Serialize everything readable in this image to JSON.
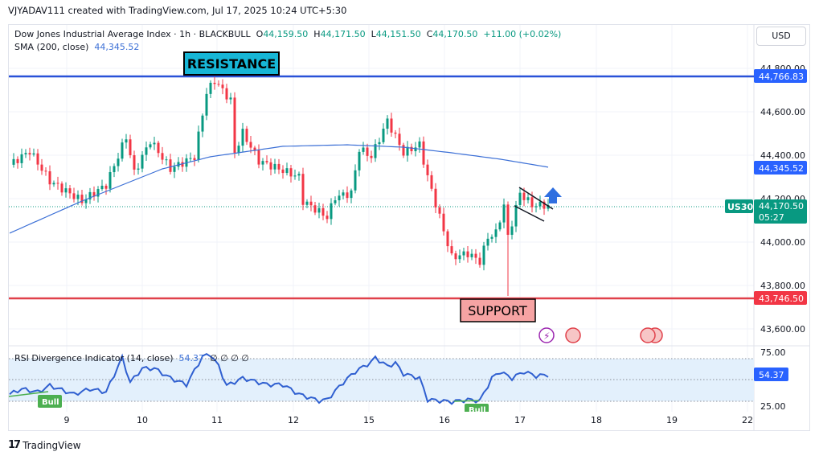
{
  "credit": "VJYADAV111 created with TradingView.com, Jul 17, 2025 10:24 UTC+5:30",
  "legend": {
    "symbol": "Dow Jones Industrial Average Index · 1h · BLACKBULL",
    "o_label": "O",
    "o": "44,159.50",
    "h_label": "H",
    "h": "44,171.50",
    "l_label": "L",
    "l": "44,151.50",
    "c_label": "C",
    "c": "44,170.50",
    "change": "+11.00 (+0.02%)",
    "sma_label": "SMA (200, close)",
    "sma_value": "44,345.52"
  },
  "currency_button": "USD",
  "annotations": {
    "resistance": "RESISTANCE",
    "support": "SUPPORT",
    "bull1": "Bull",
    "bull2": "Bull"
  },
  "price_axis": {
    "ticks": [
      "44,800.00",
      "44,600.00",
      "44,400.00",
      "44,200.00",
      "44,000.00",
      "43,800.00",
      "43,600.00"
    ],
    "resistance_tag": "44,766.83",
    "sma_tag": "44,345.52",
    "symbol_tag": "US30",
    "last_price_tag": "44,170.50",
    "countdown": "05:27",
    "support_tag": "43,746.50"
  },
  "rsi": {
    "label": "RSI Divergence Indicator (14, close)",
    "value": "54.37",
    "extras": "∅  ∅  ∅  ∅",
    "ticks": [
      "75.00",
      "25.00"
    ],
    "tag": "54.37"
  },
  "time_axis": [
    "9",
    "10",
    "11",
    "12",
    "15",
    "16",
    "17",
    "18",
    "19",
    "22"
  ],
  "footer": "TradingView",
  "colors": {
    "up": "#089981",
    "down": "#f23645",
    "sma": "#3b6fd6",
    "resistance": "#2a52d8",
    "support": "#e0404a",
    "rsi": "#2f5fd0"
  },
  "chart_data": {
    "type": "candlestick",
    "title": "Dow Jones Industrial Average Index · 1h",
    "ylim": [
      43550,
      44850
    ],
    "resistance": 44766.83,
    "support": 43746.5,
    "last": 44170.5,
    "price_path": [
      [
        0,
        44356
      ],
      [
        5,
        44419
      ],
      [
        10,
        44281
      ],
      [
        18,
        44189
      ],
      [
        24,
        44263
      ],
      [
        29,
        44485
      ],
      [
        31,
        44319
      ],
      [
        35,
        44467
      ],
      [
        40,
        44337
      ],
      [
        46,
        44393
      ],
      [
        49,
        44689
      ],
      [
        51,
        44744
      ],
      [
        55,
        44652
      ],
      [
        56,
        44411
      ],
      [
        58,
        44504
      ],
      [
        62,
        44374
      ],
      [
        67,
        44337
      ],
      [
        72,
        44300
      ],
      [
        73,
        44189
      ],
      [
        79,
        44115
      ],
      [
        81,
        44207
      ],
      [
        85,
        44226
      ],
      [
        87,
        44430
      ],
      [
        90,
        44393
      ],
      [
        94,
        44559
      ],
      [
        98,
        44411
      ],
      [
        102,
        44448
      ],
      [
        104,
        44300
      ],
      [
        107,
        44115
      ],
      [
        110,
        43930
      ],
      [
        114,
        43948
      ],
      [
        117,
        43911
      ],
      [
        119,
        44022
      ],
      [
        121,
        44041
      ],
      [
        123,
        44170
      ],
      [
        124,
        44022
      ],
      [
        127,
        44226
      ],
      [
        130,
        44170
      ],
      [
        134,
        44170
      ]
    ],
    "sma_path": [
      [
        0,
        44041
      ],
      [
        18,
        44189
      ],
      [
        38,
        44337
      ],
      [
        50,
        44393
      ],
      [
        68,
        44441
      ],
      [
        84,
        44448
      ],
      [
        98,
        44437
      ],
      [
        110,
        44411
      ],
      [
        122,
        44382
      ],
      [
        134,
        44345
      ]
    ],
    "rsi_path": [
      [
        0,
        36
      ],
      [
        3,
        41
      ],
      [
        7,
        38
      ],
      [
        10,
        44
      ],
      [
        16,
        36
      ],
      [
        20,
        41
      ],
      [
        24,
        38
      ],
      [
        28,
        70
      ],
      [
        30,
        47
      ],
      [
        33,
        60
      ],
      [
        36,
        60
      ],
      [
        40,
        51
      ],
      [
        44,
        45
      ],
      [
        48,
        71
      ],
      [
        50,
        73
      ],
      [
        52,
        62
      ],
      [
        54,
        44
      ],
      [
        58,
        51
      ],
      [
        64,
        45
      ],
      [
        68,
        45
      ],
      [
        72,
        36
      ],
      [
        77,
        30
      ],
      [
        79,
        31
      ],
      [
        83,
        47
      ],
      [
        86,
        57
      ],
      [
        90,
        66
      ],
      [
        91,
        70
      ],
      [
        94,
        62
      ],
      [
        96,
        65
      ],
      [
        98,
        55
      ],
      [
        102,
        51
      ],
      [
        104,
        31
      ],
      [
        107,
        30
      ],
      [
        110,
        29
      ],
      [
        114,
        31
      ],
      [
        117,
        30
      ],
      [
        120,
        51
      ],
      [
        122,
        57
      ],
      [
        125,
        51
      ],
      [
        128,
        57
      ],
      [
        131,
        53
      ],
      [
        134,
        54
      ]
    ],
    "rsi_ylim": [
      25,
      75
    ]
  }
}
